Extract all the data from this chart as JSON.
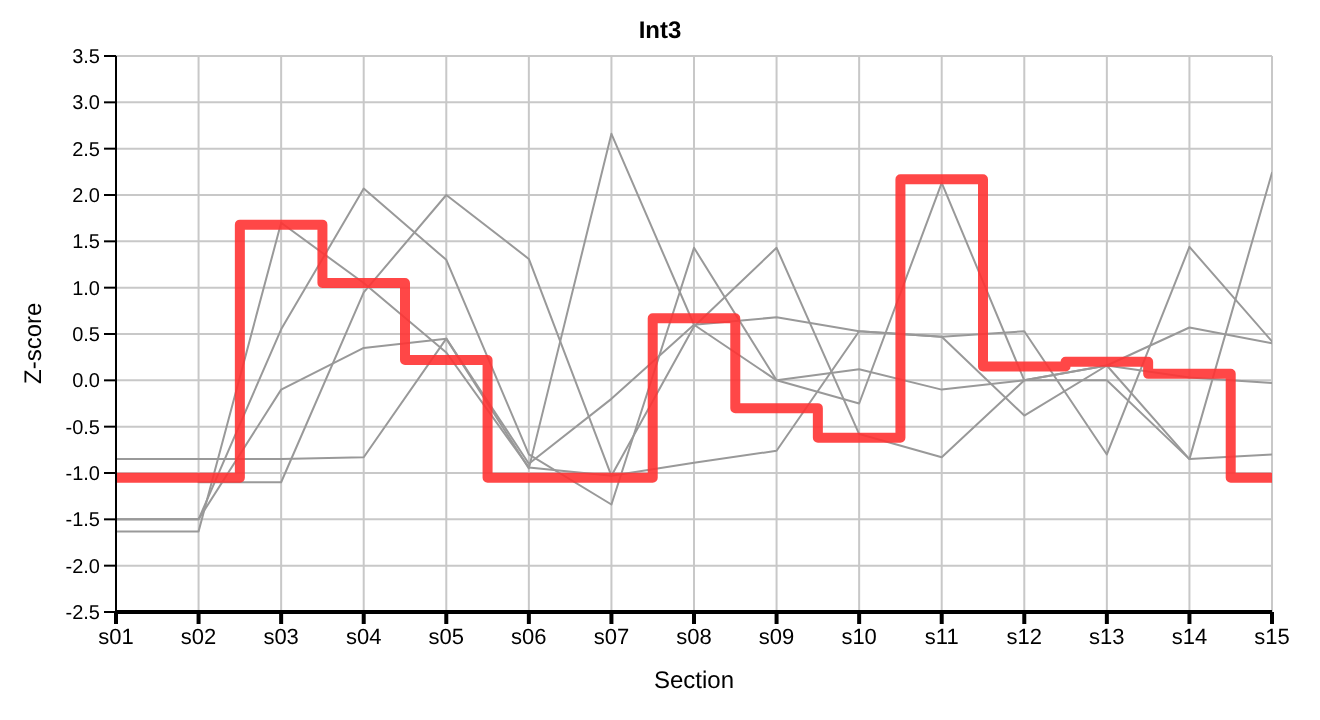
{
  "chart_data": {
    "type": "line",
    "title": "Int3",
    "xlabel": "Section",
    "ylabel": "Z-score",
    "categories": [
      "s01",
      "s02",
      "s03",
      "s04",
      "s05",
      "s06",
      "s07",
      "s08",
      "s09",
      "s10",
      "s11",
      "s12",
      "s13",
      "s14",
      "s15"
    ],
    "series": [
      {
        "color": "#999999",
        "values": [
          -0.85,
          -0.85,
          -0.85,
          -0.83,
          0.45,
          -0.95,
          2.66,
          0.6,
          0.0,
          0.12,
          -0.1,
          0.0,
          0.0,
          -0.85,
          2.24
        ]
      },
      {
        "color": "#999999",
        "values": [
          -1.5,
          -1.5,
          0.55,
          2.07,
          1.3,
          -0.8,
          -1.34,
          1.43,
          0.0,
          -0.25,
          2.13,
          0.0,
          0.16,
          0.57,
          0.4
        ]
      },
      {
        "color": "#999999",
        "values": [
          -1.63,
          -1.63,
          1.7,
          1.05,
          0.3,
          -0.94,
          -1.03,
          0.58,
          1.43,
          -0.58,
          -0.83,
          0.0,
          0.16,
          0.03,
          -0.03
        ]
      },
      {
        "color": "#999999",
        "values": [
          -1.5,
          -1.5,
          -0.1,
          0.35,
          0.45,
          -0.9,
          -0.2,
          0.6,
          0.68,
          0.53,
          0.47,
          -0.38,
          0.16,
          -0.85,
          -0.8
        ]
      },
      {
        "color": "#999999",
        "values": [
          null,
          -1.1,
          -1.1,
          0.95,
          2.0,
          1.31,
          -1.03,
          -0.89,
          -0.76,
          0.53,
          0.47,
          0.53,
          -0.8,
          1.44,
          0.42
        ]
      },
      {
        "type": "step",
        "color": "#ff3333",
        "values": [
          -1.05,
          -1.05,
          1.68,
          1.05,
          0.22,
          -1.05,
          -1.05,
          0.67,
          -0.3,
          -0.62,
          2.17,
          0.15,
          0.2,
          0.07,
          -1.05
        ]
      }
    ],
    "ylim": [
      -2.5,
      3.5
    ],
    "yticks": [
      {
        "value": -2.5,
        "label": "-2.5"
      },
      {
        "value": -2,
        "label": "-2.0"
      },
      {
        "value": -1.5,
        "label": "-1.5"
      },
      {
        "value": -1,
        "label": "-1.0"
      },
      {
        "value": -0.5,
        "label": "-0.5"
      },
      {
        "value": 0,
        "label": "0.0"
      },
      {
        "value": 0.5,
        "label": "0.5"
      },
      {
        "value": 1,
        "label": "1.0"
      },
      {
        "value": 1.5,
        "label": "1.5"
      },
      {
        "value": 2,
        "label": "2.0"
      },
      {
        "value": 2.5,
        "label": "2.5"
      },
      {
        "value": 3,
        "label": "3.0"
      },
      {
        "value": 3.5,
        "label": "3.5"
      }
    ],
    "grid": true,
    "legend": false,
    "marker": "none"
  }
}
